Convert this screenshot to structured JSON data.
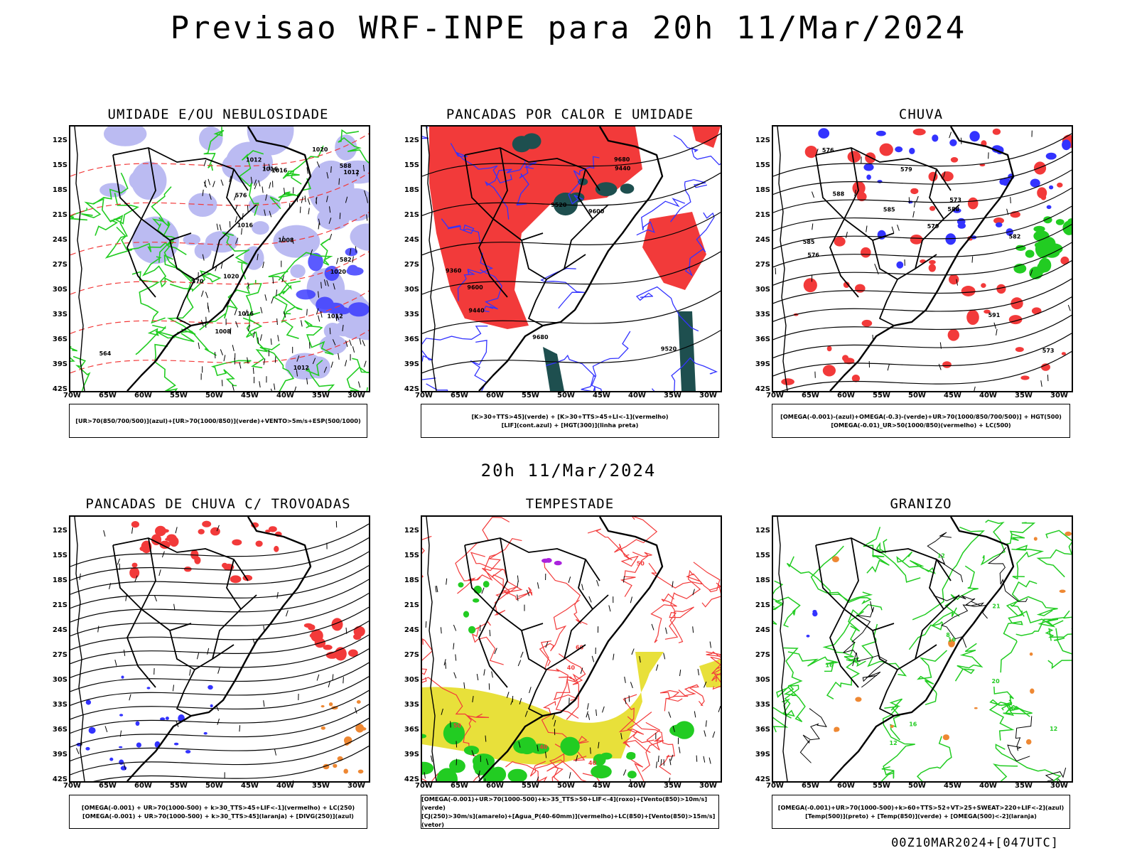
{
  "title": "Previsao WRF-INPE  para 20h 11/Mar/2024",
  "mid_time": "20h 11/Mar/2024",
  "footer": "00Z10MAR2024+[047UTC]",
  "lat_ticks": [
    "12S",
    "15S",
    "18S",
    "21S",
    "24S",
    "27S",
    "30S",
    "33S",
    "36S",
    "39S",
    "42S"
  ],
  "lon_ticks": [
    "70W",
    "65W",
    "60W",
    "55W",
    "50W",
    "45W",
    "40W",
    "35W",
    "30W"
  ],
  "colors": {
    "blue": "#3333ff",
    "lightblue": "#b0b0f0",
    "green": "#22cc22",
    "red": "#f23a3a",
    "darkteal": "#1e4f4f",
    "yellow": "#e8e03a",
    "orange": "#ee8833",
    "purple": "#aa22dd"
  },
  "panels": [
    {
      "title": "UMIDADE E/OU NEBULOSIDADE",
      "legend": [
        "[UR>70(850/700/500)](azul)+[UR>70(1000/850)](verde)+VENTO>5m/s+ESP(500/1000)"
      ],
      "contour_labels": [
        "1012",
        "1012",
        "1012",
        "1008",
        "1016",
        "1016",
        "1016",
        "1020",
        "1020",
        "1020",
        "1008",
        "1016",
        "1012",
        "582",
        "576",
        "570",
        "564",
        "588"
      ]
    },
    {
      "title": "PANCADAS POR CALOR E UMIDADE",
      "legend": [
        "[K>30+TTS>45](verde) + [K>30+TTS>45+LI<-1](vermelho)",
        "[LIF](cont.azul) + [HGT(300)](linha preta)"
      ],
      "contour_labels": [
        "9680",
        "9680",
        "9600",
        "9600",
        "9520",
        "9520",
        "9440",
        "9440",
        "9360"
      ]
    },
    {
      "title": "CHUVA",
      "legend": [
        "[OMEGA(-0.001)-(azul)+OMEGA(-0.3)-(verde)+UR>70(1000/850/700/500)] + HGT(500)",
        "[OMEGA(-0.01)_UR>50(1000/850)(vermelho) + LC(500)"
      ],
      "contour_labels": [
        "591",
        "588",
        "588",
        "585",
        "585",
        "582",
        "579",
        "579",
        "576",
        "573",
        "576",
        "573"
      ]
    },
    {
      "title": "PANCADAS DE CHUVA C/ TROVOADAS",
      "legend": [
        "[OMEGA(-0.001) + UR>70(1000-500) + k>30_TTS>45+LIF<-1](vermelho) + LC(250)",
        "[OMEGA(-0.001) + UR>70(1000-500) + k>30_TTS>45](laranja) + [DIVG(250)](azul)"
      ],
      "contour_labels": []
    },
    {
      "title": "TEMPESTADE",
      "legend": [
        "[OMEGA(-0.001)+UR>70(1000-500)+k>35_TTS>50+LIF<-4](roxo)+[Vento(850)>10m/s](verde)",
        "[CJ(250)>30m/s](amarelo)+[Agua_P(40-60mm)](vermelho)+LC(850)+[Vento(850)>15m/s](vetor)"
      ],
      "contour_labels": [
        "40",
        "40",
        "50",
        "50",
        "60",
        "40"
      ]
    },
    {
      "title": "GRANIZO",
      "legend": [
        "[OMEGA(-0.001)+UR>70(1000-500)+k>60+TTS>52+VT>25+SWEAT>220+LIF<-2](azul)",
        "[Temp(500)](preto) + [Temp(850)](verde) + [OMEGA(500)<-2](laranja)"
      ],
      "contour_labels": [
        "16",
        "12",
        "20",
        "16",
        "12",
        "8",
        "21",
        "12",
        "16"
      ]
    }
  ]
}
